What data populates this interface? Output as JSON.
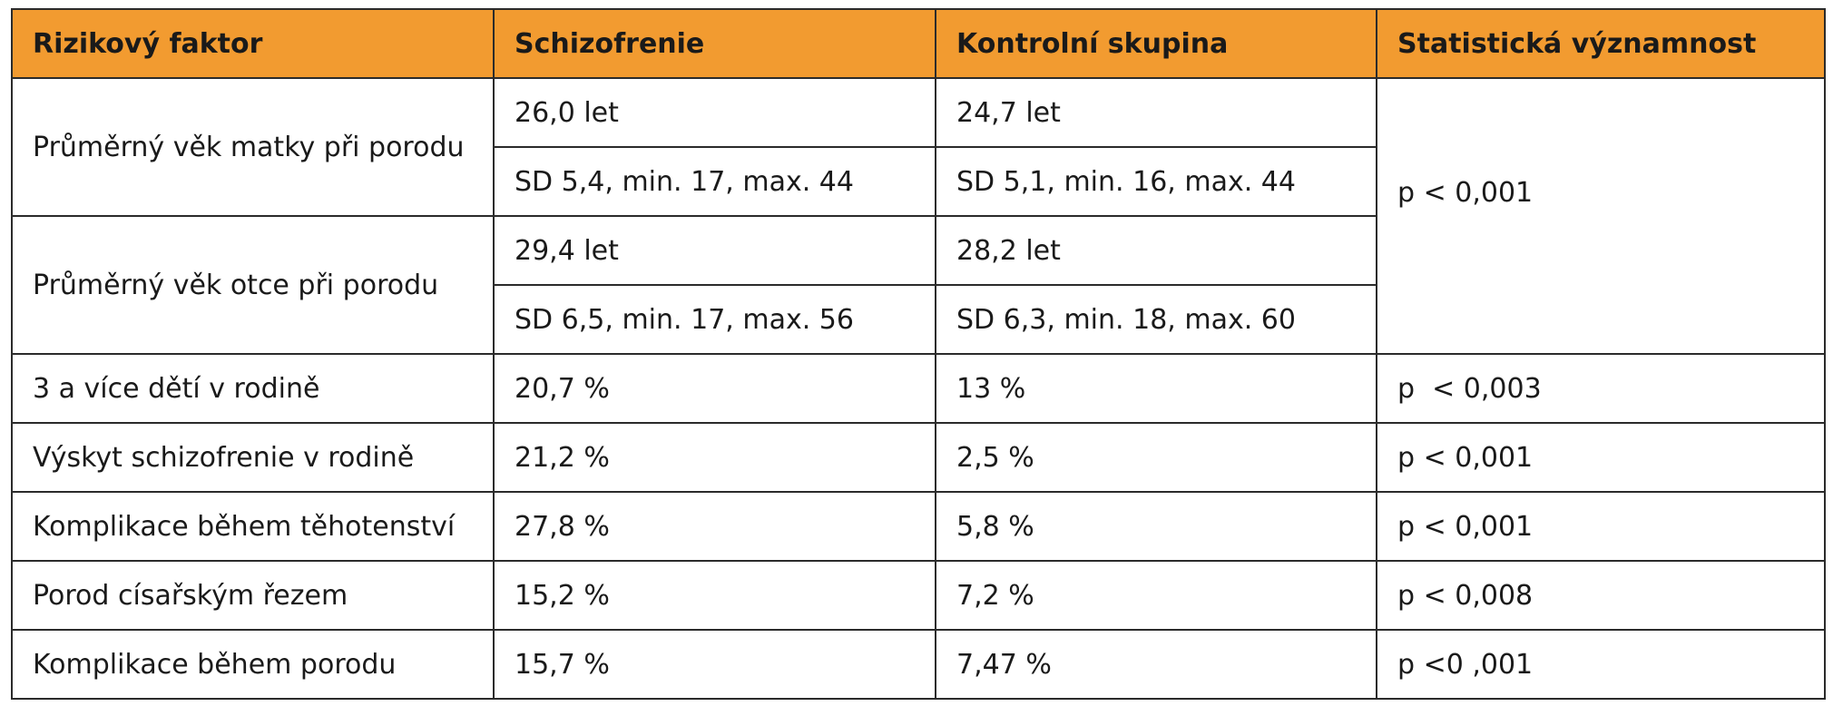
{
  "table": {
    "headers": [
      "Rizikový faktor",
      "Schizofrenie",
      "Kontrolní skupina",
      "Statistická významnost"
    ],
    "age_groups": [
      {
        "factor": "Průměrný věk matky při porodu",
        "schizo_mean": "26,0 let",
        "control_mean": "24,7 let",
        "schizo_sd": "SD 5,4, min. 17, max. 44",
        "control_sd": "SD 5,1, min. 16, max. 44"
      },
      {
        "factor": "Průměrný věk otce při porodu",
        "schizo_mean": "29,4 let",
        "control_mean": "28,2 let",
        "schizo_sd": "SD 6,5, min. 17, max. 56",
        "control_sd": "SD 6,3, min. 18, max. 60"
      }
    ],
    "age_significance": "p < 0,001",
    "rows": [
      {
        "factor": "3 a více dětí v rodině",
        "schizo": "20,7 %",
        "control": "13 %",
        "significance": "p  < 0,003"
      },
      {
        "factor": "Výskyt schizofrenie v rodině",
        "schizo": "21,2 %",
        "control": "2,5 %",
        "significance": "p < 0,001"
      },
      {
        "factor": "Komplikace během těhotenství",
        "schizo": "27,8 %",
        "control": "5,8 %",
        "significance": "p < 0,001"
      },
      {
        "factor": "Porod císařským řezem",
        "schizo": "15,2 %",
        "control": "7,2 %",
        "significance": "p < 0,008"
      },
      {
        "factor": "Komplikace během porodu",
        "schizo": "15,7 %",
        "control": "7,47 %",
        "significance": "p <0 ,001"
      }
    ]
  }
}
